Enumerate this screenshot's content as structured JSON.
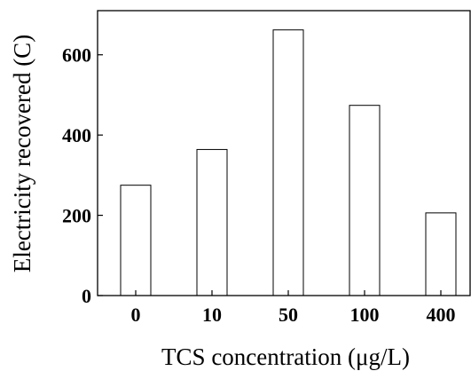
{
  "chart_data": {
    "type": "bar",
    "categories": [
      "0",
      "10",
      "50",
      "100",
      "400"
    ],
    "values": [
      275,
      364,
      662,
      474,
      206
    ],
    "xlabel": "TCS concentration (μg/L)",
    "ylabel": "Electricity recovered (C)",
    "ylim": [
      0,
      710
    ],
    "yticks": [
      0,
      200,
      400,
      600
    ],
    "grid": false,
    "bar_color": "#ffffff",
    "edge_color": "#000000"
  }
}
